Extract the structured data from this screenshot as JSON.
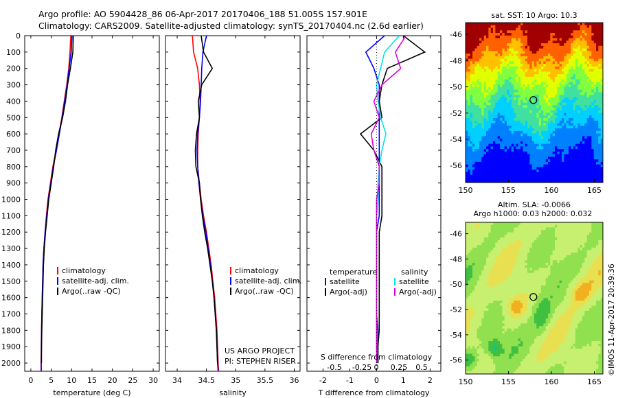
{
  "header": {
    "line1": "Argo profile: AO 5904428_86 06-Apr-2017 20170406_188 51.005S 157.901E",
    "line2": "Climatology: CARS2009. Satellite-adjusted climatology: synTS_20170404.nc (2.6d earlier)"
  },
  "colors": {
    "climatology": "#ff0000",
    "satellite": "#0000ff",
    "argo": "#000000",
    "sat_salinity": "#00e5ee",
    "argo_salinity": "#dd00dd"
  },
  "depth_ticks": [
    "0",
    "100",
    "200",
    "300",
    "400",
    "500",
    "600",
    "700",
    "800",
    "900",
    "1000",
    "1100",
    "1200",
    "1300",
    "1400",
    "1500",
    "1600",
    "1700",
    "1800",
    "1900",
    "2000"
  ],
  "temperature_panel": {
    "xlabel": "temperature (deg C)",
    "x_ticks": [
      "0",
      "5",
      "10",
      "15",
      "20",
      "25",
      "30"
    ],
    "xlim": [
      -1.5,
      31.5
    ],
    "legend": [
      "climatology",
      "satellite-adj. clim.",
      "Argo(..raw -QC)"
    ]
  },
  "salinity_panel": {
    "xlabel": "salinity",
    "x_ticks": [
      "34",
      "34.5",
      "35",
      "35.5",
      "36"
    ],
    "xlim": [
      33.8,
      36.1
    ],
    "legend": [
      "climatology",
      "satellite-adj. clim.",
      "Argo(..raw -QC)"
    ],
    "credit_line1": "US ARGO PROJECT",
    "credit_line2": "PI: STEPHEN RISER"
  },
  "difference_panel": {
    "xlabel": "T difference from climatology",
    "s_xlabel": "S difference from climatology",
    "x_ticks": [
      "-2",
      "-1",
      "0",
      "1",
      "2"
    ],
    "s_ticks": [
      "-0.5",
      "-0.25",
      "0",
      "0.25",
      "0.5"
    ],
    "legend_temperature_title": "temperature",
    "legend_salinity_title": "salinity",
    "legend_temperature": [
      "satellite",
      "Argo(-adj)"
    ],
    "legend_salinity": [
      "satellite",
      "Argo(-adj)"
    ]
  },
  "sst_map": {
    "title": "sat. SST: 10 Argo: 10.3",
    "x_ticks": [
      "150",
      "155",
      "160",
      "165"
    ],
    "y_ticks": [
      "-46",
      "-48",
      "-50",
      "-52",
      "-54",
      "-56"
    ]
  },
  "sla_map": {
    "title_line1": "Altim. SLA: -0.0066",
    "title_line2": "Argo h1000: 0.03 h2000: 0.032",
    "x_ticks": [
      "150",
      "155",
      "160",
      "165"
    ],
    "y_ticks": [
      "-46",
      "-48",
      "-50",
      "-52",
      "-54",
      "-56"
    ],
    "credit": "©IMOS 11-Apr-2017 20:39:36"
  },
  "chart_data": [
    {
      "type": "line",
      "panel": "temperature",
      "xlabel": "temperature (deg C)",
      "ylim": [
        2050,
        0
      ],
      "xlim": [
        -1.5,
        31.5
      ],
      "series": [
        {
          "name": "climatology",
          "x": [
            9.8,
            9.6,
            9.3,
            8.8,
            8.2,
            7.6,
            6.9,
            6.2,
            5.4,
            4.8,
            4.2,
            3.8,
            3.5,
            3.2,
            3.0,
            2.9,
            2.8,
            2.7,
            2.6,
            2.55,
            2.5,
            2.5
          ],
          "depth": [
            0,
            100,
            200,
            300,
            400,
            500,
            600,
            700,
            800,
            900,
            1000,
            1100,
            1200,
            1300,
            1400,
            1500,
            1600,
            1700,
            1800,
            1900,
            2000,
            2050
          ]
        },
        {
          "name": "satellite-adj. clim.",
          "x": [
            10.1,
            9.9,
            9.4,
            8.9,
            8.3,
            7.7,
            7.0,
            6.3,
            5.5,
            4.9,
            4.3,
            3.9,
            3.5,
            3.2,
            3.0,
            2.9,
            2.8,
            2.7,
            2.65,
            2.6,
            2.55,
            2.55
          ],
          "depth": [
            0,
            100,
            200,
            300,
            400,
            500,
            600,
            700,
            800,
            900,
            1000,
            1100,
            1200,
            1300,
            1400,
            1500,
            1600,
            1700,
            1800,
            1900,
            2000,
            2050
          ]
        },
        {
          "name": "Argo(..raw -QC)",
          "x": [
            10.4,
            10.3,
            9.7,
            9.0,
            8.5,
            7.8,
            6.8,
            6.1,
            5.6,
            5.0,
            4.4,
            4.0,
            3.6,
            3.3,
            3.1,
            3.0,
            2.9,
            2.8,
            2.7,
            2.6,
            2.6
          ],
          "depth": [
            0,
            100,
            200,
            300,
            400,
            500,
            600,
            700,
            800,
            900,
            1000,
            1100,
            1200,
            1300,
            1400,
            1500,
            1600,
            1700,
            1800,
            1900,
            2000
          ]
        }
      ]
    },
    {
      "type": "line",
      "panel": "salinity",
      "xlabel": "salinity",
      "ylim": [
        2050,
        0
      ],
      "xlim": [
        33.8,
        36.1
      ],
      "series": [
        {
          "name": "climatology",
          "x": [
            34.26,
            34.28,
            34.35,
            34.38,
            34.39,
            34.38,
            34.36,
            34.35,
            34.35,
            34.38,
            34.41,
            34.45,
            34.5,
            34.54,
            34.58,
            34.61,
            34.64,
            34.66,
            34.68,
            34.69,
            34.7,
            34.71
          ],
          "depth": [
            0,
            100,
            200,
            300,
            400,
            500,
            600,
            700,
            800,
            900,
            1000,
            1100,
            1200,
            1300,
            1400,
            1500,
            1600,
            1700,
            1800,
            1900,
            2000,
            2050
          ]
        },
        {
          "name": "satellite-adj. clim.",
          "x": [
            34.5,
            34.44,
            34.42,
            34.41,
            34.4,
            34.38,
            34.35,
            34.34,
            34.35,
            34.37,
            34.4,
            34.44,
            34.49,
            34.53,
            34.57,
            34.6,
            34.63,
            34.65,
            34.67,
            34.68,
            34.69,
            34.7
          ],
          "depth": [
            0,
            100,
            200,
            300,
            400,
            500,
            600,
            700,
            800,
            900,
            1000,
            1100,
            1200,
            1300,
            1400,
            1500,
            1600,
            1700,
            1800,
            1900,
            2000,
            2050
          ]
        },
        {
          "name": "Argo(..raw -QC)",
          "x": [
            34.41,
            34.45,
            34.6,
            34.42,
            34.36,
            34.38,
            34.33,
            34.31,
            34.32,
            34.38,
            34.4,
            34.43,
            34.47,
            34.52,
            34.56,
            34.6,
            34.63,
            34.65,
            34.67,
            34.68,
            34.69
          ],
          "depth": [
            0,
            100,
            200,
            300,
            400,
            500,
            600,
            700,
            800,
            900,
            1000,
            1100,
            1200,
            1300,
            1400,
            1500,
            1600,
            1700,
            1800,
            1900,
            2000
          ]
        }
      ]
    },
    {
      "type": "line",
      "panel": "difference",
      "xlabel": "T difference from climatology",
      "ylim": [
        2050,
        0
      ],
      "xlim": [
        -2.6,
        2.4
      ],
      "series": [
        {
          "name": "temperature satellite",
          "x": [
            0.3,
            -0.4,
            -0.1,
            0.1,
            0.1,
            0.1,
            0.1,
            0.1,
            0.1,
            0.1,
            0.1,
            0.1,
            0.0,
            0.0,
            0.0,
            0.0,
            0.0,
            0.0,
            0.05,
            0.05,
            0.05
          ],
          "depth": [
            0,
            100,
            200,
            300,
            400,
            500,
            600,
            700,
            800,
            900,
            1000,
            1100,
            1200,
            1300,
            1400,
            1500,
            1600,
            1700,
            1800,
            1900,
            2000
          ]
        },
        {
          "name": "temperature Argo(-adj)",
          "x": [
            1.0,
            1.8,
            0.4,
            0.2,
            0.1,
            0.2,
            -0.6,
            -0.1,
            0.2,
            0.2,
            0.2,
            0.2,
            0.1,
            0.1,
            0.1,
            0.1,
            0.1,
            0.1,
            0.1,
            0.05,
            0.05
          ],
          "depth": [
            0,
            100,
            200,
            300,
            400,
            500,
            600,
            700,
            800,
            900,
            1000,
            1100,
            1200,
            1300,
            1400,
            1500,
            1600,
            1700,
            1800,
            1900,
            2000
          ]
        },
        {
          "name": "salinity satellite",
          "x": [
            0.85,
            0.3,
            0.15,
            0.0,
            0.05,
            0.15,
            0.35,
            0.2,
            0.1,
            0.05,
            0.05,
            0.0,
            0.0,
            0.0,
            0.0,
            0.0,
            0.0,
            0.0,
            0.0,
            0.0,
            0.0
          ],
          "depth": [
            0,
            100,
            200,
            300,
            400,
            500,
            600,
            700,
            800,
            900,
            1000,
            1100,
            1200,
            1300,
            1400,
            1500,
            1600,
            1700,
            1800,
            1900,
            2000
          ]
        },
        {
          "name": "salinity Argo(-adj)",
          "x": [
            1.1,
            0.7,
            0.9,
            0.2,
            -0.1,
            0.1,
            -0.2,
            -0.1,
            0.1,
            0.1,
            0.0,
            0.0,
            0.0,
            0.0,
            0.0,
            0.0,
            0.0,
            0.0,
            0.0,
            0.0,
            0.0
          ],
          "depth": [
            0,
            100,
            200,
            300,
            400,
            500,
            600,
            700,
            800,
            900,
            1000,
            1100,
            1200,
            1300,
            1400,
            1500,
            1600,
            1700,
            1800,
            1900,
            2000
          ]
        }
      ]
    },
    {
      "type": "heatmap",
      "panel": "sst_map",
      "title": "sat. SST: 10 Argo: 10.3",
      "xlim": [
        150,
        166
      ],
      "ylim": [
        -57.3,
        -45.1
      ],
      "argo_position": {
        "lon": 157.901,
        "lat": -51.005
      }
    },
    {
      "type": "heatmap",
      "panel": "sla_map",
      "title": "Altim. SLA: -0.0066",
      "xlim": [
        150,
        166
      ],
      "ylim": [
        -57.1,
        -45.1
      ],
      "argo_position": {
        "lon": 157.901,
        "lat": -51.005
      }
    }
  ]
}
